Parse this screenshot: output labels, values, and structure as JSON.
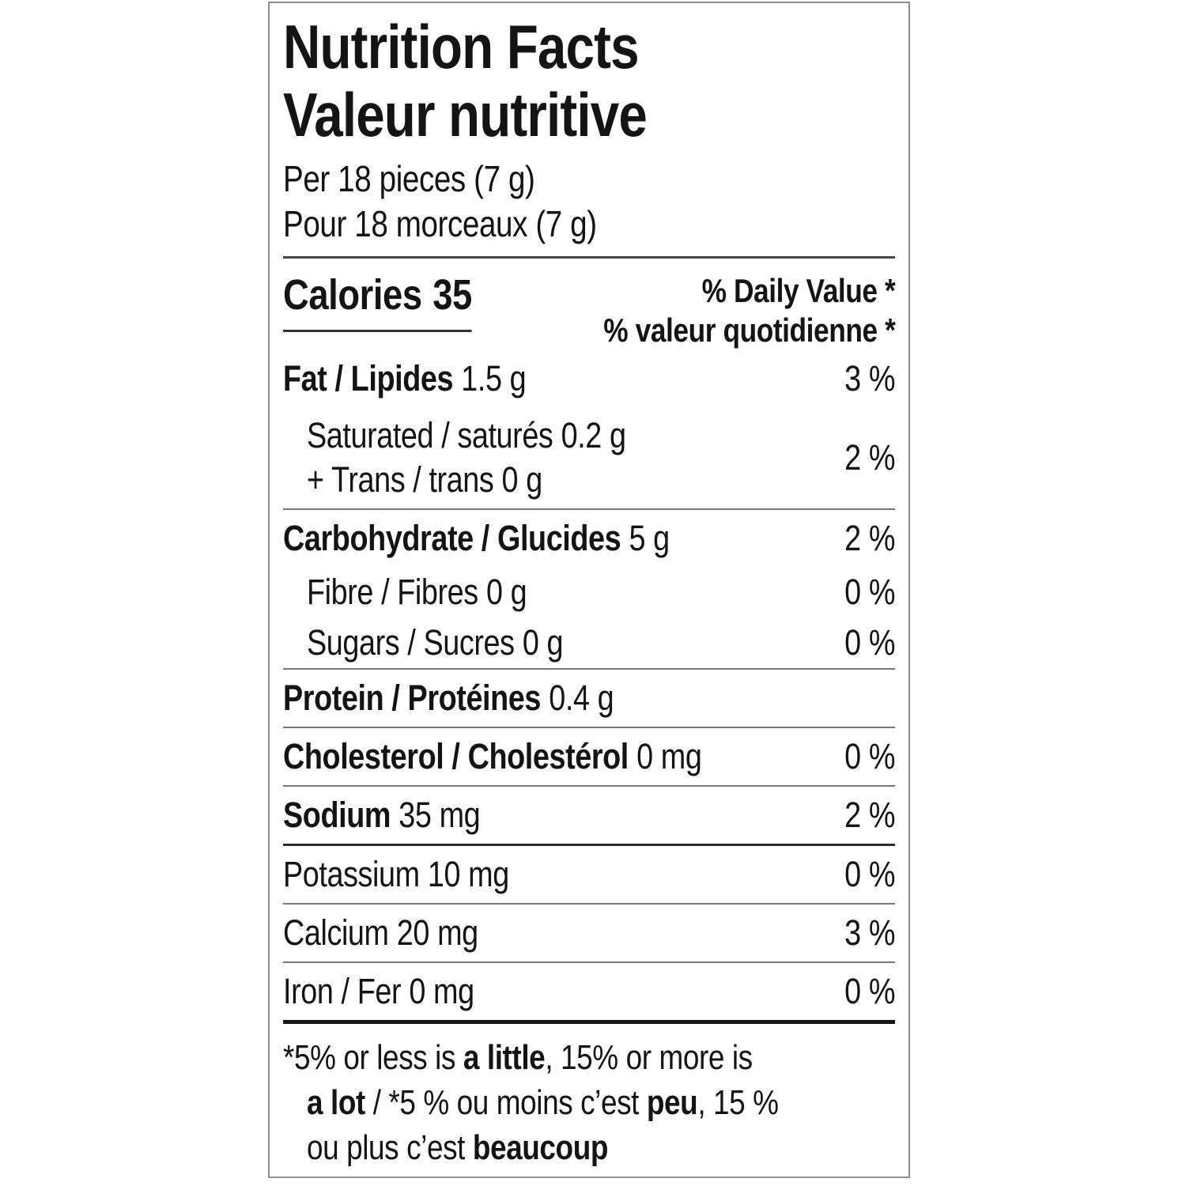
{
  "label": {
    "title_en": "Nutrition Facts",
    "title_fr": "Valeur nutritive",
    "serving_en": "Per 18 pieces (7 g)",
    "serving_fr": "Pour 18 morceaux (7 g)",
    "calories": {
      "label": "Calories",
      "value": "35"
    },
    "daily_value_header_en": "% Daily Value *",
    "daily_value_header_fr": "% valeur quotidienne *",
    "nutrients": {
      "fat": {
        "label": "Fat / Lipides",
        "amount": "1.5 g",
        "dv": "3 %"
      },
      "saturated_trans": {
        "line1": {
          "label": "Saturated / saturés",
          "amount": "0.2 g"
        },
        "line2": {
          "label": "+ Trans / trans",
          "amount": "0 g"
        },
        "dv": "2 %"
      },
      "carbohydrate": {
        "label": "Carbohydrate / Glucides",
        "amount": "5 g",
        "dv": "2 %"
      },
      "fibre": {
        "label": "Fibre / Fibres",
        "amount": "0 g",
        "dv": "0 %"
      },
      "sugars": {
        "label": "Sugars / Sucres",
        "amount": "0 g",
        "dv": "0 %"
      },
      "protein": {
        "label": "Protein / Protéines",
        "amount": "0.4 g",
        "dv": ""
      },
      "cholesterol": {
        "label": "Cholesterol / Cholestérol",
        "amount": "0 mg",
        "dv": "0 %"
      },
      "sodium": {
        "label": "Sodium",
        "amount": "35 mg",
        "dv": "2 %"
      },
      "potassium": {
        "label": "Potassium",
        "amount": "10 mg",
        "dv": "0 %"
      },
      "calcium": {
        "label": "Calcium",
        "amount": "20 mg",
        "dv": "3 %"
      },
      "iron": {
        "label": "Iron / Fer",
        "amount": "0 mg",
        "dv": "0 %"
      }
    },
    "footnote": {
      "lines": [
        [
          {
            "t": "*5% or less is ",
            "b": false
          },
          {
            "t": "a little",
            "b": true
          },
          {
            "t": ", 15% or more is",
            "b": false
          }
        ],
        [
          {
            "t": "a lot",
            "b": true
          },
          {
            "t": " / *5 % ou moins c’est ",
            "b": false
          },
          {
            "t": "peu",
            "b": true
          },
          {
            "t": ", 15 %",
            "b": false
          }
        ],
        [
          {
            "t": "ou plus c’est ",
            "b": false
          },
          {
            "t": "beaucoup",
            "b": true
          }
        ]
      ]
    },
    "colors": {
      "text": "#141414",
      "thin_rule": "#777777",
      "dark_rule": "#2b2b2b",
      "thick_rule": "#161616",
      "border": "#8f8f8f",
      "background": "#ffffff"
    }
  }
}
